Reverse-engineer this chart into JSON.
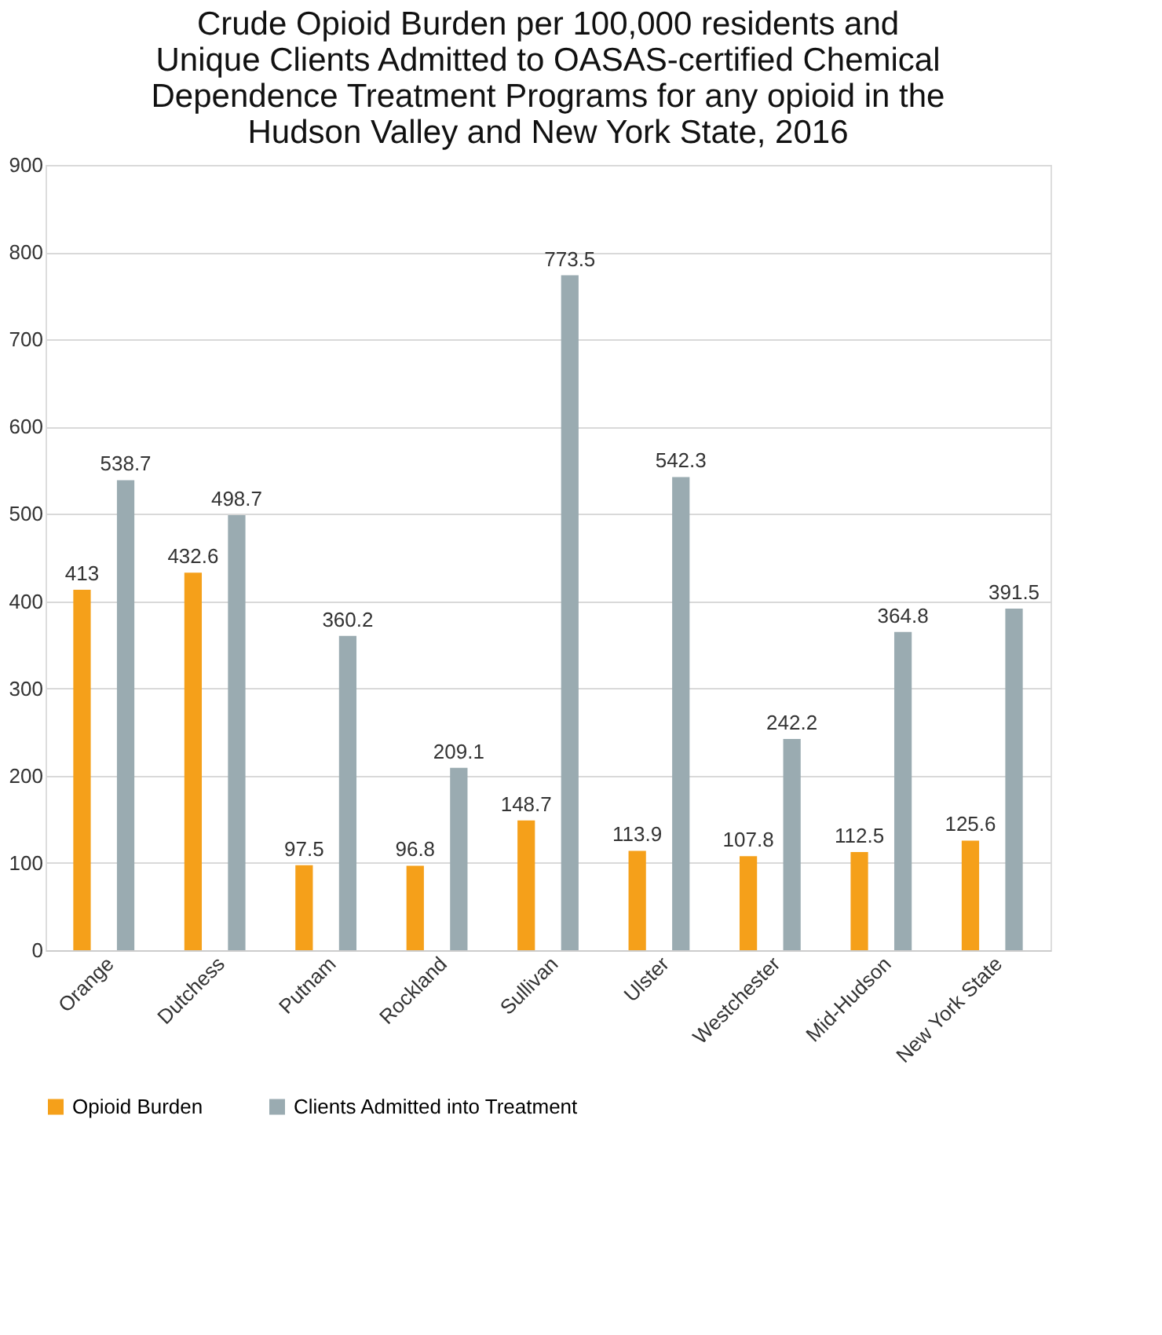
{
  "chart_data": {
    "type": "bar",
    "title": "Crude Opioid Burden per 100,000 residents and Unique Clients Admitted to OASAS-certified Chemical Dependence Treatment Programs for any opioid in the Hudson Valley and New York State, 2016",
    "categories": [
      "Orange",
      "Dutchess",
      "Putnam",
      "Rockland",
      "Sullivan",
      "Ulster",
      "Westchester",
      "Mid-Hudson",
      "New York State"
    ],
    "series": [
      {
        "name": "Opioid Burden",
        "color": "#f5a01a",
        "values": [
          413,
          432.6,
          97.5,
          96.8,
          148.7,
          113.9,
          107.8,
          112.5,
          125.6
        ]
      },
      {
        "name": "Clients Admitted into Treatment",
        "color": "#9aabb1",
        "values": [
          538.7,
          498.7,
          360.2,
          209.1,
          773.5,
          542.3,
          242.2,
          364.8,
          391.5
        ]
      }
    ],
    "ylim": [
      0,
      900
    ],
    "yticks": [
      0,
      100,
      200,
      300,
      400,
      500,
      600,
      700,
      800,
      900
    ],
    "grid": "y",
    "legend": "bottom",
    "data_labels": true
  }
}
